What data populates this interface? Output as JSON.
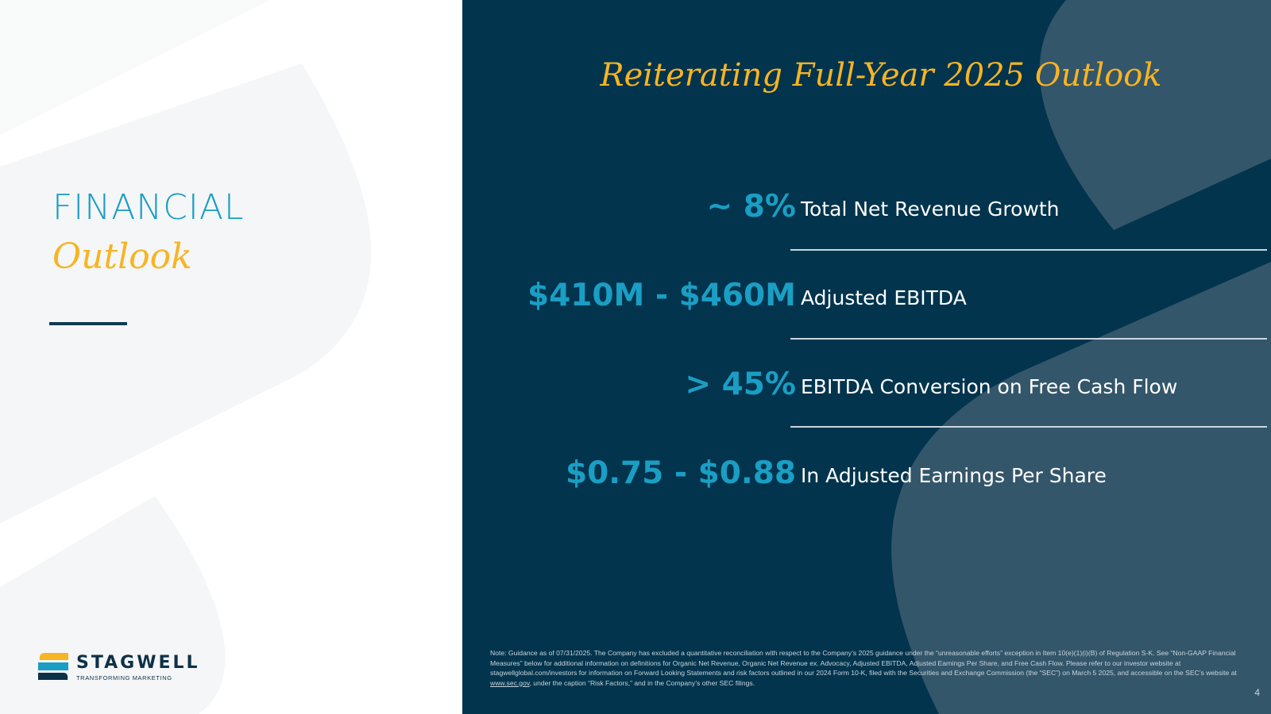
{
  "left": {
    "title_line1": "FINANCIAL",
    "title_line2": "Outlook"
  },
  "logo": {
    "name": "STAGWELL",
    "tagline": "TRANSFORMING MARKETING"
  },
  "headline": "Reiterating Full-Year 2025 Outlook",
  "metrics": [
    {
      "value": "~ 8%",
      "label": "Total Net Revenue Growth"
    },
    {
      "value": "$410M - $460M",
      "label": "Adjusted EBITDA"
    },
    {
      "value": "> 45%",
      "label": "EBITDA Conversion on Free Cash Flow"
    },
    {
      "value": "$0.75 - $0.88",
      "label": "In Adjusted Earnings Per Share"
    }
  ],
  "footnote": {
    "text_before_link": "Note: Guidance as of 07/31/2025. The Company has excluded a quantitative reconciliation with respect to the Company’s 2025 guidance under the “unreasonable efforts” exception in Item 10(e)(1)(i)(B) of Regulation S-K. See “Non-GAAP Financial Measures” below for additional information on definitions for Organic Net Revenue, Organic Net Revenue ex. Advocacy, Adjusted EBITDA, Adjusted Earnings Per Share, and Free Cash Flow. Please refer to our investor website at stagwellglobal.com/investors for information on Forward Looking Statements and risk factors outlined in our 2024 Form 10-K, filed with the Securities and Exchange Commission (the “SEC”) on March 5 2025, and accessible on the SEC’s website at ",
    "link_text": "www.sec.gov",
    "text_after_link": ", under the caption “Risk Factors,” and in the Company’s other SEC filings."
  },
  "page_number": "4",
  "colors": {
    "navy": "#02344d",
    "teal": "#1a9ec4",
    "gold": "#f7b423"
  }
}
